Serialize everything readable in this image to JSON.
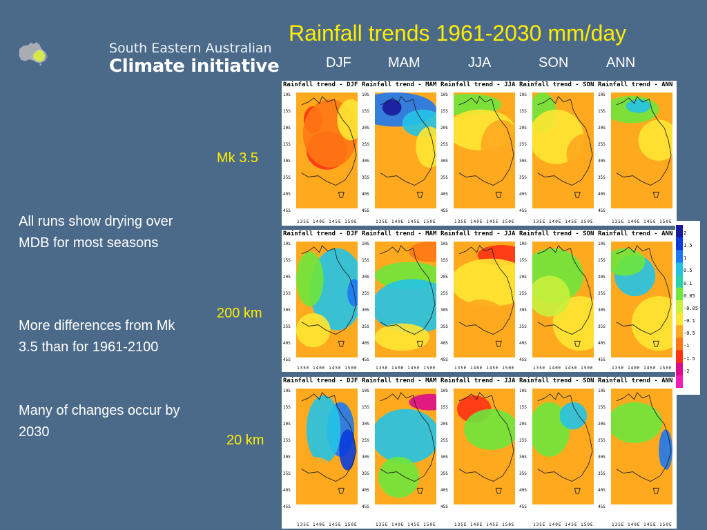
{
  "logo": {
    "line1": "South Eastern Australian",
    "line2": "Climate initiative"
  },
  "title": "Rainfall trends 1961-2030 mm/day",
  "seasons": [
    "DJF",
    "MAM",
    "JJA",
    "SON",
    "ANN"
  ],
  "row_labels": [
    "Mk 3.5",
    "200 km",
    "20 km"
  ],
  "bullets": [
    "All runs show drying over MDB for most seasons",
    "More differences from Mk 3.5 than for 1961-2100",
    "Many of changes occur by 2030"
  ],
  "panel_titles": {
    "mk35": [
      "Rainfall trend - DJF 1",
      "Rainfall trend - MAM",
      "Rainfall trend - JJA 19",
      "Rainfall trend - SON",
      "Rainfall trend - ANN 1961"
    ],
    "km200": [
      "Rainfall trend - DJF 1",
      "Rainfall trend - MAM 1",
      "Rainfall trend - JJA 19",
      "Rainfall trend - SON 1",
      "Rainfall trend - ANN 196"
    ],
    "km20": [
      "Rainfall trend - DJF 1",
      "Rainfall trend - MAM",
      "Rainfall trend - JJA 1",
      "Rainfall trend - SON",
      "Rainfall trend - ANN 196"
    ]
  },
  "lat_ticks": [
    "10S",
    "15S",
    "20S",
    "25S",
    "30S",
    "35S",
    "40S",
    "45S"
  ],
  "lon_ticks": "135E 140E 145E 150E 15",
  "colorbar": {
    "labels": [
      "2",
      "1.5",
      "1",
      "0.5",
      "0.1",
      "0.05",
      "-0.05",
      "-0.1",
      "-0.5",
      "-1",
      "-1.5",
      "-2"
    ],
    "colors": [
      "#1a1a9c",
      "#0a3cdc",
      "#1e78f0",
      "#23c3e6",
      "#28d2aa",
      "#6ee63c",
      "#c8f03c",
      "#ffe632",
      "#ffaa1e",
      "#ff7814",
      "#ff3214",
      "#dc0a8c",
      "#f01eb4"
    ]
  },
  "palette": {
    "background": "#4b6a8a",
    "title": "#ffee00",
    "text": "#ffffff"
  }
}
